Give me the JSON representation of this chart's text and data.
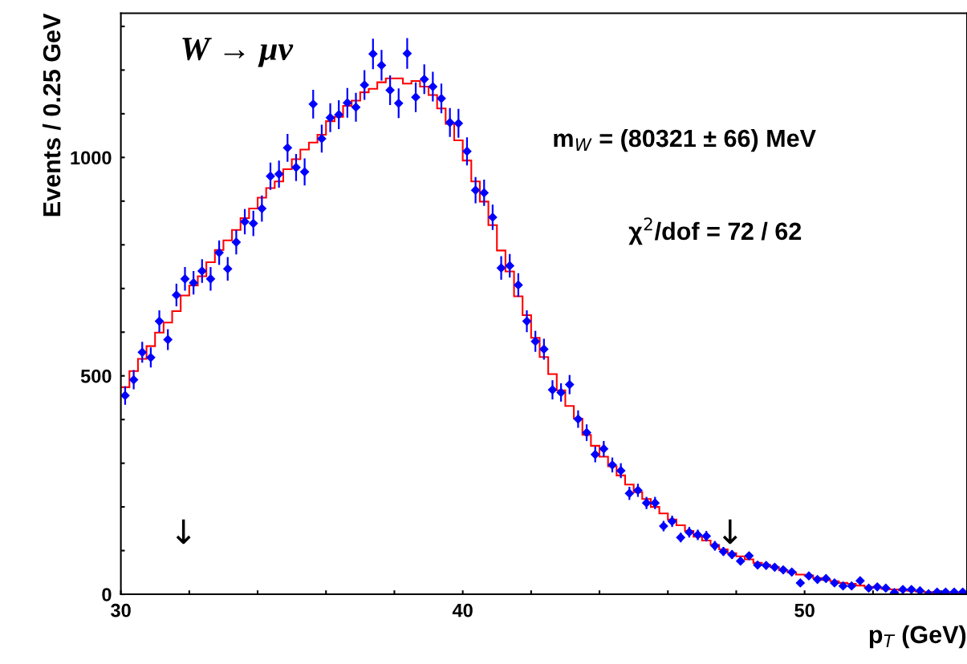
{
  "chart_data": {
    "type": "histogram",
    "xlabel": "p$_{T}$ (GeV)",
    "ylabel": "Events / 0.25 GeV",
    "xlim": [
      30,
      54.75
    ],
    "ylim": [
      0,
      1330
    ],
    "xticks": [
      30,
      {
        "value": 32,
        "label": null
      },
      {
        "value": 34,
        "label": null
      },
      {
        "value": 36,
        "label": null
      },
      {
        "value": 38,
        "label": null
      },
      40,
      {
        "value": 42,
        "label": null
      },
      {
        "value": 44,
        "label": null
      },
      {
        "value": 46,
        "label": null
      },
      {
        "value": 48,
        "label": null
      },
      50,
      {
        "value": 52,
        "label": null
      },
      {
        "value": 54,
        "label": null
      }
    ],
    "yticks": [
      0,
      {
        "value": 100,
        "label": null
      },
      {
        "value": 200,
        "label": null
      },
      {
        "value": 300,
        "label": null
      },
      {
        "value": 400,
        "label": null
      },
      500,
      {
        "value": 600,
        "label": null
      },
      {
        "value": 700,
        "label": null
      },
      {
        "value": 800,
        "label": null
      },
      {
        "value": 900,
        "label": null
      },
      1000,
      {
        "value": 1100,
        "label": null
      },
      {
        "value": 1200,
        "label": null
      },
      {
        "value": 1300,
        "label": null
      }
    ],
    "grid": false,
    "legend": false,
    "marker": "diamond",
    "bins": [
      30.0,
      30.25,
      30.5,
      30.75,
      31.0,
      31.25,
      31.5,
      31.75,
      32.0,
      32.25,
      32.5,
      32.75,
      33.0,
      33.25,
      33.5,
      33.75,
      34.0,
      34.25,
      34.5,
      34.75,
      35.0,
      35.25,
      35.5,
      35.75,
      36.0,
      36.25,
      36.5,
      36.75,
      37.0,
      37.25,
      37.5,
      37.75,
      38.0,
      38.25,
      38.5,
      38.75,
      39.0,
      39.25,
      39.5,
      39.75,
      40.0,
      40.25,
      40.5,
      40.75,
      41.0,
      41.25,
      41.5,
      41.75,
      42.0,
      42.25,
      42.5,
      42.75,
      43.0,
      43.25,
      43.5,
      43.75,
      44.0,
      44.25,
      44.5,
      44.75,
      45.0,
      45.25,
      45.5,
      45.75,
      46.0,
      46.25,
      46.5,
      46.75,
      47.0,
      47.25,
      47.5,
      47.75,
      48.0,
      48.25,
      48.5,
      48.75,
      49.0,
      49.25,
      49.5,
      49.75,
      50.0,
      50.25,
      50.5,
      50.75,
      51.0,
      51.25,
      51.5,
      51.75,
      52.0,
      52.25,
      52.5,
      52.75,
      53.0,
      53.25,
      53.5,
      53.75,
      54.0,
      54.25,
      54.5,
      54.75
    ],
    "series": [
      {
        "type": "histogram",
        "color": "#ff0000",
        "values": [
          474,
          511,
          539,
          568,
          599,
          622,
          648,
          684,
          707,
          728,
          760,
          788,
          810,
          834,
          861,
          883,
          908,
          930,
          945,
          973,
          996,
          1018,
          1034,
          1052,
          1083,
          1093,
          1118,
          1130,
          1149,
          1157,
          1172,
          1181,
          1181,
          1169,
          1175,
          1162,
          1143,
          1112,
          1077,
          1039,
          993,
          945,
          899,
          845,
          787,
          739,
          682,
          639,
          587,
          543,
          504,
          467,
          431,
          402,
          365,
          340,
          315,
          293,
          272,
          251,
          234,
          218,
          200,
          185,
          171,
          158,
          145,
          132,
          123,
          113,
          103,
          94,
          87,
          80,
          72,
          67,
          62,
          55,
          50,
          45,
          43,
          37,
          33,
          30,
          26,
          24,
          20,
          17,
          15,
          12,
          11,
          9,
          8,
          6,
          5,
          4,
          4,
          4,
          3
        ]
      },
      {
        "type": "scatter",
        "color": "#0000ff",
        "x": [
          30.125,
          30.375,
          30.625,
          30.875,
          31.125,
          31.375,
          31.625,
          31.875,
          32.125,
          32.375,
          32.625,
          32.875,
          33.125,
          33.375,
          33.625,
          33.875,
          34.125,
          34.375,
          34.625,
          34.875,
          35.125,
          35.375,
          35.625,
          35.875,
          36.125,
          36.375,
          36.625,
          36.875,
          37.125,
          37.375,
          37.625,
          37.875,
          38.125,
          38.375,
          38.625,
          38.875,
          39.125,
          39.375,
          39.625,
          39.875,
          40.125,
          40.375,
          40.625,
          40.875,
          41.125,
          41.375,
          41.625,
          41.875,
          42.125,
          42.375,
          42.625,
          42.875,
          43.125,
          43.375,
          43.625,
          43.875,
          44.125,
          44.375,
          44.625,
          44.875,
          45.125,
          45.375,
          45.625,
          45.875,
          46.125,
          46.375,
          46.625,
          46.875,
          47.125,
          47.375,
          47.625,
          47.875,
          48.125,
          48.375,
          48.625,
          48.875,
          49.125,
          49.375,
          49.625,
          49.875,
          50.125,
          50.375,
          50.625,
          50.875,
          51.125,
          51.375,
          51.625,
          51.875,
          52.125,
          52.375,
          52.625,
          52.875,
          53.125,
          53.375,
          53.625,
          53.875,
          54.125,
          54.375,
          54.625
        ],
        "values": [
          455,
          491,
          554,
          542,
          625,
          583,
          685,
          722,
          713,
          740,
          722,
          782,
          745,
          806,
          853,
          849,
          883,
          957,
          962,
          1022,
          977,
          967,
          1122,
          1043,
          1091,
          1098,
          1125,
          1115,
          1166,
          1237,
          1211,
          1154,
          1124,
          1238,
          1138,
          1179,
          1162,
          1135,
          1080,
          1078,
          1014,
          925,
          919,
          863,
          747,
          752,
          708,
          625,
          579,
          561,
          468,
          462,
          480,
          401,
          370,
          320,
          333,
          296,
          283,
          231,
          238,
          209,
          209,
          156,
          167,
          130,
          142,
          136,
          133,
          111,
          98,
          91,
          76,
          88,
          67,
          66,
          62,
          56,
          51,
          26,
          42,
          34,
          36,
          26,
          19,
          19,
          31,
          14,
          17,
          14,
          4,
          11,
          11,
          8,
          1,
          5,
          5,
          5,
          5
        ],
        "errors": [
          21,
          22,
          24,
          23,
          25,
          24,
          26,
          27,
          27,
          27,
          27,
          28,
          27,
          28,
          29,
          29,
          30,
          31,
          31,
          32,
          31,
          31,
          33,
          32,
          33,
          33,
          34,
          33,
          34,
          35,
          35,
          34,
          34,
          35,
          34,
          34,
          34,
          34,
          33,
          33,
          32,
          30,
          30,
          29,
          27,
          27,
          27,
          25,
          24,
          24,
          22,
          21,
          22,
          20,
          19,
          18,
          18,
          17,
          17,
          15,
          15,
          14,
          14,
          12,
          13,
          11,
          12,
          12,
          12,
          11,
          10,
          10,
          9,
          9,
          8,
          8,
          8,
          7,
          7,
          5,
          6,
          6,
          6,
          5,
          4,
          4,
          6,
          4,
          4,
          4,
          2,
          3,
          3,
          3,
          2,
          2,
          2,
          2,
          2
        ]
      }
    ],
    "annotations": [
      "W → μν",
      "m$_{W}$ = (80321 ± 66) MeV",
      "χ$^{2}$/dof = 72 / 62",
      "↓",
      "↓"
    ]
  }
}
